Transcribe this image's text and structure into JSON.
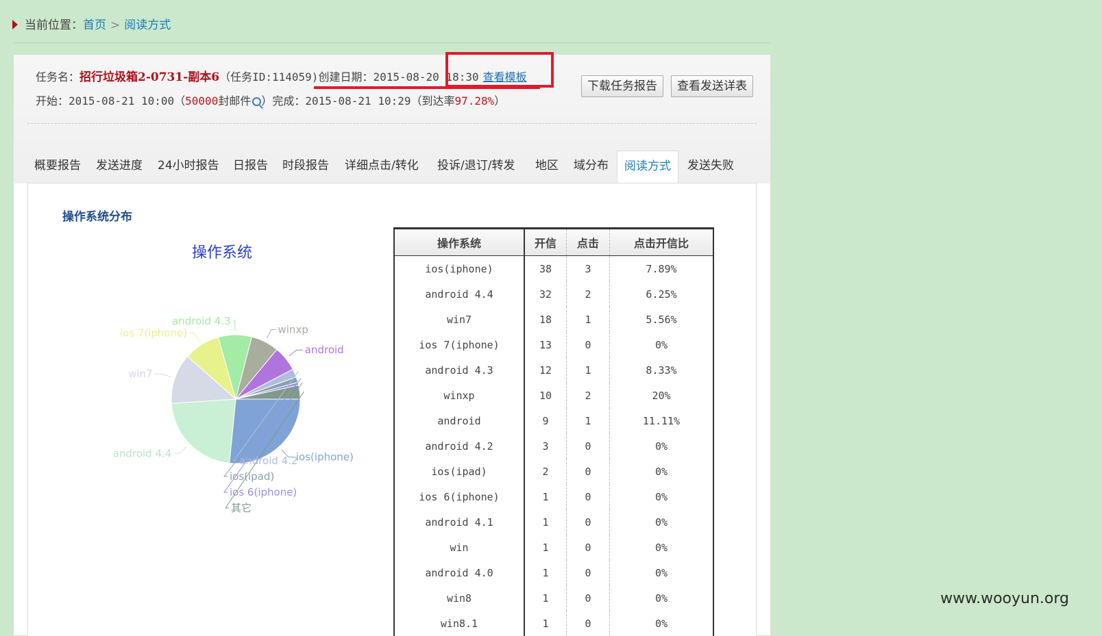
{
  "breadcrumb": {
    "prefix": "当前位置：",
    "home": "首页",
    "sep": ">",
    "current": "阅读方式"
  },
  "task": {
    "name_label": "任务名：",
    "name": "招行垃圾箱2-0731-副本6",
    "id_text": "（任务ID:114059)",
    "created_label": "创建日期：",
    "created": "2015-08-20 18:30",
    "template_link": "查看模板",
    "start_label": "开始：",
    "start": "2015-08-21 10:00（",
    "mail_count": "50000",
    "mail_unit": "封邮件",
    "finish_label": "）完成：",
    "finish": "2015-08-21 10:29（到达率",
    "rate": "97.28%",
    "rate_close": "）"
  },
  "buttons": {
    "download": "下载任务报告",
    "detail": "查看发送详表"
  },
  "tabs": [
    "概要报告",
    "发送进度",
    "24小时报告",
    "日报告",
    "时段报告",
    "详细点击/转化",
    "投诉/退订/转发",
    "地区",
    "域分布",
    "阅读方式",
    "发送失败"
  ],
  "section_title": "操作系统分布",
  "table": {
    "headers": [
      "操作系统",
      "开信",
      "点击",
      "点击开信比"
    ],
    "rows": [
      [
        "ios(iphone)",
        "38",
        "3",
        "7.89%"
      ],
      [
        "android 4.4",
        "32",
        "2",
        "6.25%"
      ],
      [
        "win7",
        "18",
        "1",
        "5.56%"
      ],
      [
        "ios 7(iphone)",
        "13",
        "0",
        "0%"
      ],
      [
        "android 4.3",
        "12",
        "1",
        "8.33%"
      ],
      [
        "winxp",
        "10",
        "2",
        "20%"
      ],
      [
        "android",
        "9",
        "1",
        "11.11%"
      ],
      [
        "android 4.2",
        "3",
        "0",
        "0%"
      ],
      [
        "ios(ipad)",
        "2",
        "0",
        "0%"
      ],
      [
        "ios 6(iphone)",
        "1",
        "0",
        "0%"
      ],
      [
        "android 4.1",
        "1",
        "0",
        "0%"
      ],
      [
        "win",
        "1",
        "0",
        "0%"
      ],
      [
        "android 4.0",
        "1",
        "0",
        "0%"
      ],
      [
        "win8",
        "1",
        "0",
        "0%"
      ],
      [
        "win8.1",
        "1",
        "0",
        "0%"
      ]
    ]
  },
  "chart_data": {
    "type": "pie",
    "title": "操作系统",
    "categories": [
      "ios(iphone)",
      "android 4.4",
      "win7",
      "ios 7(iphone)",
      "android 4.3",
      "winxp",
      "android",
      "android 4.2",
      "ios(ipad)",
      "ios 6(iphone)",
      "其它"
    ],
    "values": [
      38,
      32,
      18,
      13,
      12,
      10,
      9,
      3,
      2,
      1,
      5
    ],
    "colors": [
      "#7fa3d6",
      "#c9f0d4",
      "#d6dae6",
      "#e8f28c",
      "#a2eca6",
      "#a8ad9e",
      "#b074de",
      "#b0bce0",
      "#8aa0b0",
      "#9a8ee6",
      "#7f9a88"
    ]
  },
  "watermark": "www.wooyun.org"
}
